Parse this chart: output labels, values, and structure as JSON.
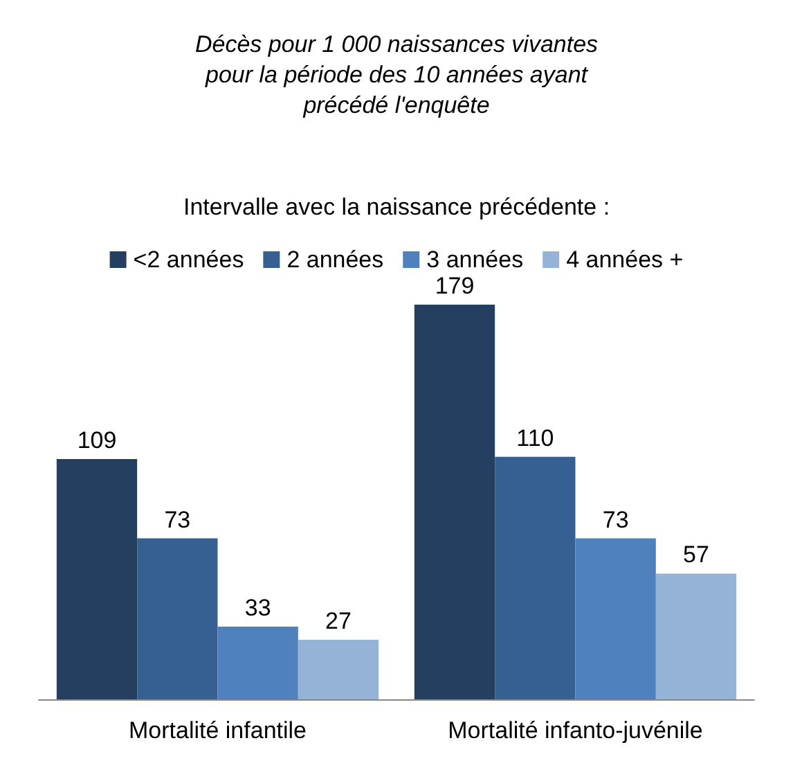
{
  "chart_data": {
    "type": "bar",
    "title": "Décès pour 1 000 naissances vivantes\npour la période des 10 années ayant\nprécédé l'enquête",
    "legend_title": "Intervalle avec la naissance précédente :",
    "categories": [
      "Mortalité infantile",
      "Mortalité infanto-juvénile"
    ],
    "series": [
      {
        "name": "<2 années",
        "color": "#243f60",
        "values": [
          109,
          179
        ]
      },
      {
        "name": "2 années",
        "color": "#366092",
        "values": [
          73,
          110
        ]
      },
      {
        "name": "3 années",
        "color": "#4f81bd",
        "values": [
          33,
          73
        ]
      },
      {
        "name": "4 années +",
        "color": "#95b3d7",
        "values": [
          27,
          57
        ]
      }
    ],
    "data_labels": true,
    "legend": "top"
  }
}
